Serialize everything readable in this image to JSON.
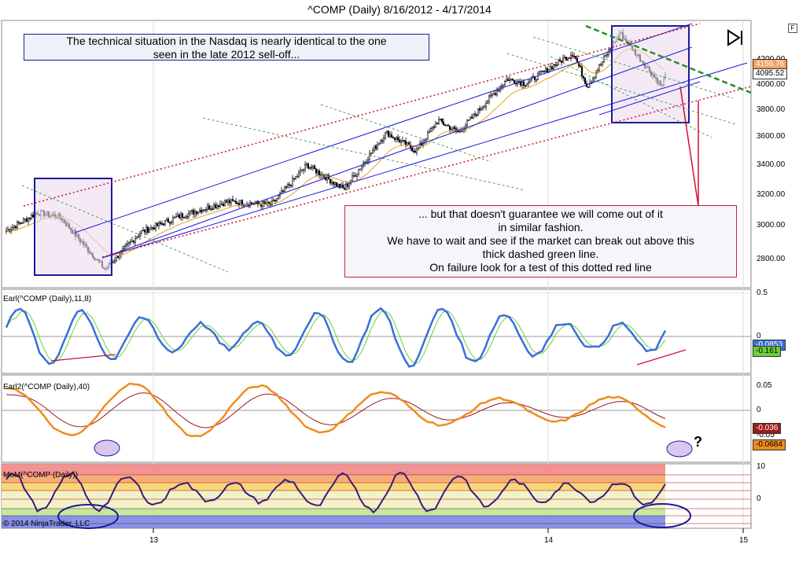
{
  "window": {
    "title": "^COMP (Daily)  8/16/2012 - 4/17/2014",
    "f_badge": "F",
    "copyright": "© 2014 NinjaTrader, LLC",
    "nav_icon": "skip-to-end-icon"
  },
  "annotations": {
    "top_lines": [
      "The technical situation in the Nasdaq is nearly identical to the one",
      "seen in the late 2012 sell-off..."
    ],
    "bottom_lines": [
      "... but that doesn't guarantee we will come out of it",
      "in similar fashion.",
      "We have to wait and see if the market can break out above this",
      "thick dashed green line.",
      "On failure look for a test of this dotted red line"
    ],
    "question_mark": "?"
  },
  "colors": {
    "price_ma": "#e8a020",
    "earl_fast": "#3a6fd8",
    "earl_slow": "#6ccf3a",
    "earl2_fast": "#f08c1e",
    "earl2_slow": "#9a1a1a",
    "mom_line": "#3a1a7a",
    "channel_blue": "#1a1ad8",
    "dotted_red": "#d01030",
    "dashed_green": "#2a8a2a",
    "highlight": "#ecdcf0"
  },
  "chart_data": [
    {
      "type": "line",
      "panel": "price",
      "series": [
        {
          "name": "^COMP (Daily)",
          "x": [
            "2012-08-16",
            "2012-09-14",
            "2012-10-05",
            "2012-11-15",
            "2012-12-18",
            "2013-01-25",
            "2013-03-08",
            "2013-04-18",
            "2013-05-21",
            "2013-06-24",
            "2013-08-02",
            "2013-08-30",
            "2013-09-19",
            "2013-10-08",
            "2013-11-22",
            "2013-12-09",
            "2014-01-22",
            "2014-02-04",
            "2014-03-06",
            "2014-04-14",
            "2014-04-17"
          ],
          "values": [
            3060,
            3180,
            3150,
            2810,
            3050,
            3160,
            3250,
            3230,
            3490,
            3330,
            3700,
            3580,
            3780,
            3700,
            4050,
            4020,
            4220,
            4000,
            4350,
            4000,
            4095.52
          ]
        }
      ],
      "ylabel": "",
      "ylim": [
        2700,
        4420
      ],
      "yticks": [
        "2800.00",
        "3000.00",
        "3200.00",
        "3400.00",
        "3600.00",
        "3800.00",
        "4000.00",
        "4200.00"
      ],
      "last_price": "4095.52",
      "last_price_high": "4156.76",
      "xticks": [
        "13",
        "14",
        "15"
      ]
    },
    {
      "type": "line",
      "panel": "indicator",
      "name": "Earl(^COMP (Daily),11,8)",
      "yticks": [
        "0.5",
        "0"
      ],
      "last_values": [
        "-0.0853",
        "-0.161"
      ]
    },
    {
      "type": "line",
      "panel": "indicator",
      "name": "Earl2(^COMP (Daily),40)",
      "yticks": [
        "0.05",
        "0",
        "-0.05"
      ],
      "last_values": [
        "-0.036",
        "-0.0684"
      ]
    },
    {
      "type": "line",
      "panel": "indicator",
      "name": "MoM(^COMP (Daily))",
      "yticks": [
        "10",
        "0"
      ]
    }
  ]
}
